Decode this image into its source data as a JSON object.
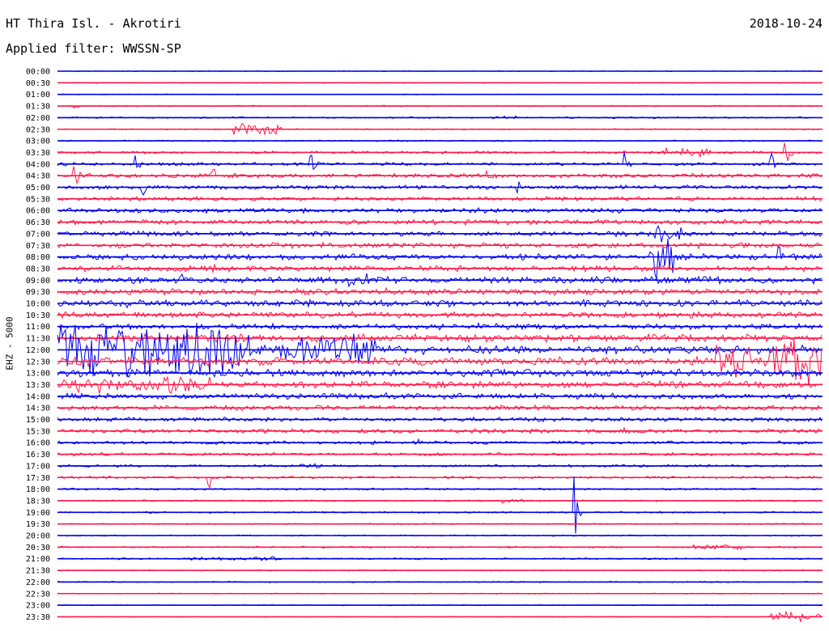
{
  "header": {
    "station": "HT Thira Isl. - Akrotiri",
    "date": "2018-10-24",
    "filter": "Applied filter: WWSSN-SP"
  },
  "chart_data": {
    "type": "line",
    "ylabel": "EHZ - 5000",
    "colors": {
      "odd": "#0000ee",
      "even": "#ff1a4a"
    },
    "rows": [
      "00:00",
      "00:30",
      "01:00",
      "01:30",
      "02:00",
      "02:30",
      "03:00",
      "03:30",
      "04:00",
      "04:30",
      "05:00",
      "05:30",
      "06:00",
      "06:30",
      "07:00",
      "07:30",
      "08:00",
      "08:30",
      "09:00",
      "09:30",
      "10:00",
      "10:30",
      "11:00",
      "11:30",
      "12:00",
      "12:30",
      "13:00",
      "13:30",
      "14:00",
      "14:30",
      "15:00",
      "15:30",
      "16:00",
      "16:30",
      "17:00",
      "17:30",
      "18:00",
      "18:30",
      "19:00",
      "19:30",
      "20:00",
      "20:30",
      "21:00",
      "21:30",
      "22:00",
      "22:30",
      "23:00",
      "23:30"
    ],
    "noise": [
      0.5,
      0.6,
      0.5,
      0.7,
      1.0,
      0.8,
      0.9,
      1.6,
      2.0,
      2.5,
      2.5,
      2.5,
      3.0,
      3.0,
      3.0,
      3.2,
      3.5,
      3.5,
      4.0,
      3.8,
      4.0,
      3.5,
      3.5,
      4.5,
      5.0,
      5.0,
      4.5,
      4.0,
      3.5,
      3.0,
      2.5,
      2.5,
      2.0,
      1.8,
      1.5,
      1.5,
      1.2,
      1.0,
      1.0,
      0.8,
      0.8,
      1.0,
      1.0,
      0.8,
      0.8,
      0.6,
      0.6,
      0.5
    ],
    "events": [
      {
        "row": 1,
        "x": 0.05,
        "w": 0.02,
        "amp": 2
      },
      {
        "row": 3,
        "x": 0.02,
        "w": 0.02,
        "amp": 4
      },
      {
        "row": 4,
        "x": 0.56,
        "w": 0.04,
        "amp": 3
      },
      {
        "row": 5,
        "x": 0.23,
        "w": 0.06,
        "amp": 10
      },
      {
        "row": 7,
        "x": 0.79,
        "w": 0.06,
        "amp": 6
      },
      {
        "row": 7,
        "x": 0.95,
        "w": 0.01,
        "amp": 30
      },
      {
        "row": 8,
        "x": 0.1,
        "w": 0.01,
        "amp": 22
      },
      {
        "row": 8,
        "x": 0.33,
        "w": 0.01,
        "amp": 22
      },
      {
        "row": 8,
        "x": 0.74,
        "w": 0.01,
        "amp": 20
      },
      {
        "row": 8,
        "x": 0.93,
        "w": 0.01,
        "amp": 30
      },
      {
        "row": 9,
        "x": 0.02,
        "w": 0.01,
        "amp": 30
      },
      {
        "row": 9,
        "x": 0.2,
        "w": 0.01,
        "amp": 25
      },
      {
        "row": 9,
        "x": 0.56,
        "w": 0.01,
        "amp": 18
      },
      {
        "row": 10,
        "x": 0.11,
        "w": 0.01,
        "amp": 18
      },
      {
        "row": 10,
        "x": 0.6,
        "w": 0.01,
        "amp": 15
      },
      {
        "row": 14,
        "x": 0.78,
        "w": 0.03,
        "amp": 12
      },
      {
        "row": 16,
        "x": 0.77,
        "w": 0.03,
        "amp": 30
      },
      {
        "row": 16,
        "x": 0.94,
        "w": 0.01,
        "amp": 30
      },
      {
        "row": 17,
        "x": 0.2,
        "w": 0.01,
        "amp": 16
      },
      {
        "row": 18,
        "x": 0.16,
        "w": 0.01,
        "amp": 16
      },
      {
        "row": 18,
        "x": 0.38,
        "w": 0.03,
        "amp": 10
      },
      {
        "row": 19,
        "x": 0.32,
        "w": 0.01,
        "amp": 15
      },
      {
        "row": 20,
        "x": 0.09,
        "w": 0.01,
        "amp": 18
      },
      {
        "row": 22,
        "x": 0.55,
        "w": 0.02,
        "amp": 8
      },
      {
        "row": 22,
        "x": 0.85,
        "w": 0.02,
        "amp": 8
      },
      {
        "row": 24,
        "x": 0.0,
        "w": 0.25,
        "amp": 40
      },
      {
        "row": 24,
        "x": 0.29,
        "w": 0.05,
        "amp": 22
      },
      {
        "row": 24,
        "x": 0.35,
        "w": 0.06,
        "amp": 22
      },
      {
        "row": 25,
        "x": 0.86,
        "w": 0.04,
        "amp": 25
      },
      {
        "row": 25,
        "x": 0.93,
        "w": 0.07,
        "amp": 34
      },
      {
        "row": 27,
        "x": 0.0,
        "w": 0.2,
        "amp": 12
      },
      {
        "row": 31,
        "x": 0.55,
        "w": 0.02,
        "amp": 6
      },
      {
        "row": 31,
        "x": 0.74,
        "w": 0.02,
        "amp": 6
      },
      {
        "row": 32,
        "x": 0.47,
        "w": 0.02,
        "amp": 6
      },
      {
        "row": 32,
        "x": 0.65,
        "w": 0.02,
        "amp": 7
      },
      {
        "row": 34,
        "x": 0.31,
        "w": 0.03,
        "amp": 3
      },
      {
        "row": 35,
        "x": 0.195,
        "w": 0.005,
        "amp": 45
      },
      {
        "row": 37,
        "x": 0.58,
        "w": 0.03,
        "amp": 4
      },
      {
        "row": 38,
        "x": 0.675,
        "w": 0.005,
        "amp": 55
      },
      {
        "row": 41,
        "x": 0.83,
        "w": 0.06,
        "amp": 4
      },
      {
        "row": 42,
        "x": 0.17,
        "w": 0.12,
        "amp": 3
      },
      {
        "row": 47,
        "x": 0.93,
        "w": 0.07,
        "amp": 7
      }
    ],
    "gaps": [
      {
        "row": 41,
        "x": 0.745,
        "w": 0.035
      }
    ]
  }
}
